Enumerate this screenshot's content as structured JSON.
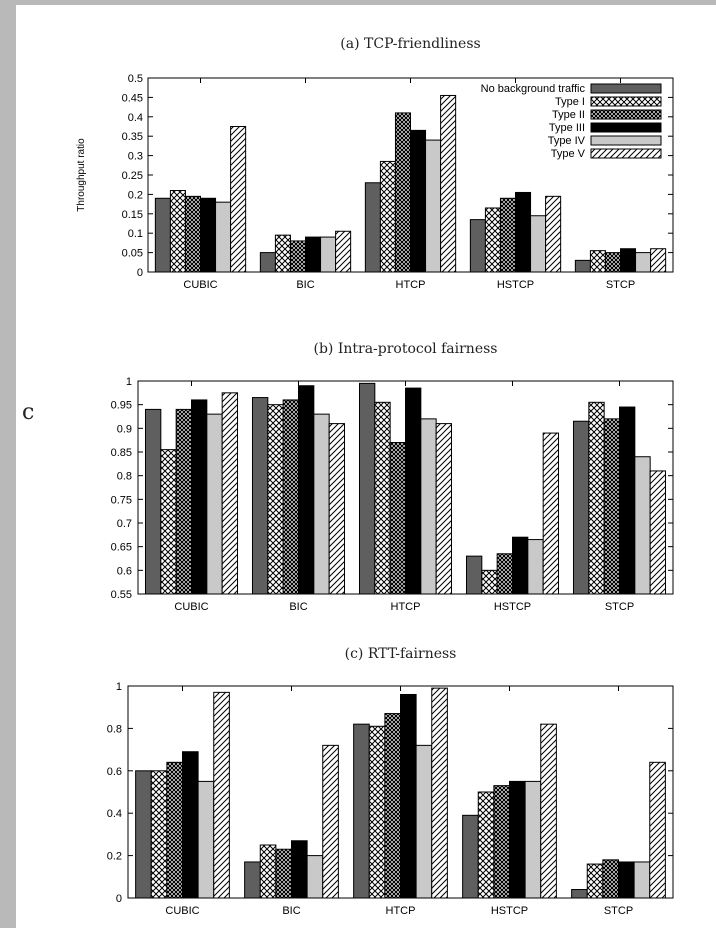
{
  "page": {
    "stray_glyph": "c",
    "colors": {
      "frame": "#b9b9b9"
    }
  },
  "series_styles": [
    {
      "name": "No background traffic",
      "fill": "#5f5f5f",
      "pattern": "solid"
    },
    {
      "name": "Type I",
      "fill": "#ffffff",
      "pattern": "cross"
    },
    {
      "name": "Type II",
      "fill": "#ffffff",
      "pattern": "dense"
    },
    {
      "name": "Type III",
      "fill": "#000000",
      "pattern": "solid"
    },
    {
      "name": "Type IV",
      "fill": "#c9c9c9",
      "pattern": "solid"
    },
    {
      "name": "Type V",
      "fill": "#ffffff",
      "pattern": "diag"
    }
  ],
  "chart_data": [
    {
      "type": "bar",
      "title": "(a) TCP-friendliness",
      "ylabel": "Throughput ratio",
      "xlabel": "",
      "categories": [
        "CUBIC",
        "BIC",
        "HTCP",
        "HSTCP",
        "STCP"
      ],
      "ylim": [
        0,
        0.5
      ],
      "yticks": [
        "0",
        "0.05",
        "0.1",
        "0.15",
        "0.2",
        "0.25",
        "0.3",
        "0.35",
        "0.4",
        "0.45",
        "0.5"
      ],
      "legend": "top-right",
      "series": [
        {
          "name": "No background traffic",
          "values": [
            0.19,
            0.05,
            0.23,
            0.135,
            0.03
          ]
        },
        {
          "name": "Type I",
          "values": [
            0.21,
            0.095,
            0.285,
            0.165,
            0.055
          ]
        },
        {
          "name": "Type II",
          "values": [
            0.195,
            0.08,
            0.41,
            0.19,
            0.05
          ]
        },
        {
          "name": "Type III",
          "values": [
            0.19,
            0.09,
            0.365,
            0.205,
            0.06
          ]
        },
        {
          "name": "Type IV",
          "values": [
            0.18,
            0.09,
            0.34,
            0.145,
            0.05
          ]
        },
        {
          "name": "Type V",
          "values": [
            0.375,
            0.105,
            0.455,
            0.195,
            0.06
          ]
        }
      ]
    },
    {
      "type": "bar",
      "title": "(b) Intra-protocol fairness",
      "ylabel": "",
      "xlabel": "",
      "categories": [
        "CUBIC",
        "BIC",
        "HTCP",
        "HSTCP",
        "STCP"
      ],
      "ylim": [
        0.55,
        1
      ],
      "yticks": [
        "0.55",
        "0.6",
        "0.65",
        "0.7",
        "0.75",
        "0.8",
        "0.85",
        "0.9",
        "0.95",
        "1"
      ],
      "series": [
        {
          "name": "No background traffic",
          "values": [
            0.94,
            0.965,
            0.995,
            0.63,
            0.915
          ]
        },
        {
          "name": "Type I",
          "values": [
            0.855,
            0.95,
            0.955,
            0.6,
            0.955
          ]
        },
        {
          "name": "Type II",
          "values": [
            0.94,
            0.96,
            0.87,
            0.635,
            0.92
          ]
        },
        {
          "name": "Type III",
          "values": [
            0.96,
            0.99,
            0.985,
            0.67,
            0.945
          ]
        },
        {
          "name": "Type IV",
          "values": [
            0.93,
            0.93,
            0.92,
            0.665,
            0.84
          ]
        },
        {
          "name": "Type V",
          "values": [
            0.975,
            0.91,
            0.91,
            0.89,
            0.81
          ]
        }
      ]
    },
    {
      "type": "bar",
      "title": "(c) RTT-fairness",
      "ylabel": "",
      "xlabel": "",
      "categories": [
        "CUBIC",
        "BIC",
        "HTCP",
        "HSTCP",
        "STCP"
      ],
      "ylim": [
        0,
        1
      ],
      "yticks": [
        "0",
        "0.2",
        "0.4",
        "0.6",
        "0.8",
        "1"
      ],
      "series": [
        {
          "name": "No background traffic",
          "values": [
            0.6,
            0.17,
            0.82,
            0.39,
            0.04
          ]
        },
        {
          "name": "Type I",
          "values": [
            0.6,
            0.25,
            0.81,
            0.5,
            0.16
          ]
        },
        {
          "name": "Type II",
          "values": [
            0.64,
            0.23,
            0.87,
            0.53,
            0.18
          ]
        },
        {
          "name": "Type III",
          "values": [
            0.69,
            0.27,
            0.96,
            0.55,
            0.17
          ]
        },
        {
          "name": "Type IV",
          "values": [
            0.55,
            0.2,
            0.72,
            0.55,
            0.17
          ]
        },
        {
          "name": "Type V",
          "values": [
            0.97,
            0.72,
            0.99,
            0.82,
            0.64
          ]
        }
      ]
    }
  ]
}
